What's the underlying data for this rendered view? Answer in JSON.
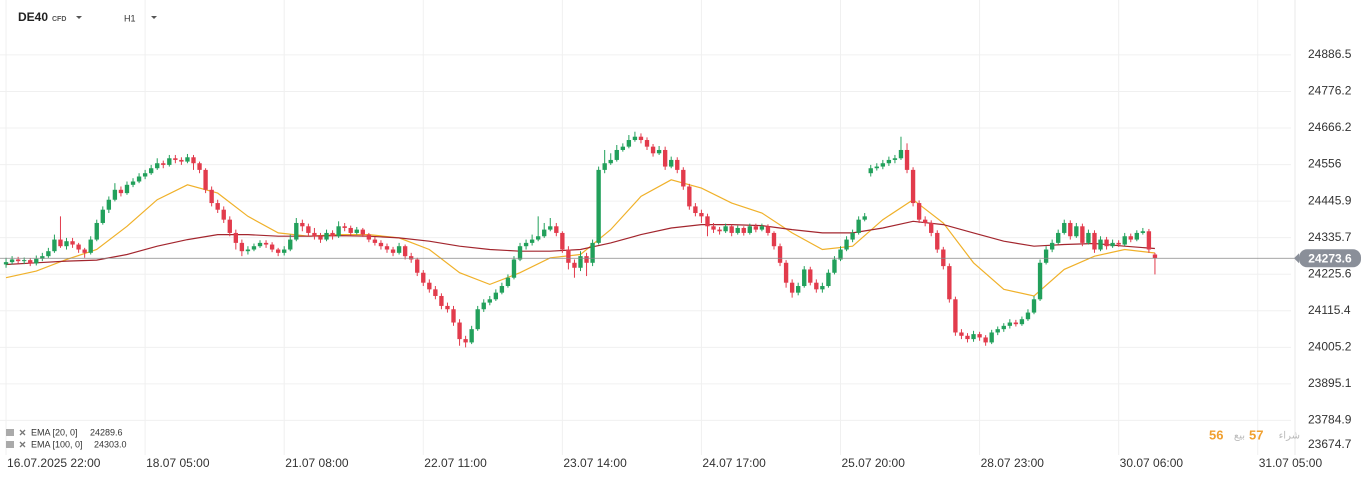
{
  "header": {
    "symbol": "DE40",
    "instrument": "CFD",
    "timeframe": "H1"
  },
  "quote": {
    "sell": "56",
    "sell_label": "بيع",
    "buy": "57",
    "buy_label": "شراء"
  },
  "chart_data": {
    "type": "candlestick",
    "ylim": [
      23674.7,
      25052
    ],
    "yticks": [
      24886.5,
      24776.2,
      24666.2,
      24556,
      {
        "value": 24445.9,
        "label": "24445.9"
      },
      24335.7,
      24225.6,
      24115.4,
      24005.2,
      23895.1,
      23784.9,
      23674.7
    ],
    "xlim": [
      -1,
      212.5
    ],
    "xticks": [
      {
        "value": 0,
        "label": "16.07.2025  22:00"
      },
      {
        "value": 23,
        "label": "18.07  05:00"
      },
      {
        "value": 46,
        "label": "21.07  08:00"
      },
      {
        "value": 69,
        "label": "22.07  11:00"
      },
      {
        "value": 92,
        "label": "23.07  14:00"
      },
      {
        "value": 115,
        "label": "24.07  17:00"
      },
      {
        "value": 138,
        "label": "25.07  20:00"
      },
      {
        "value": 161,
        "label": "28.07  23:00"
      },
      {
        "value": 184,
        "label": "30.07  06:00"
      },
      {
        "value": 207,
        "label": "31.07  05:00"
      }
    ],
    "grid": true,
    "up_color": "#22a05b",
    "down_color": "#e23b4c",
    "last_price": 24273.6,
    "open": [
      24255,
      24262,
      24270,
      24265,
      24268,
      24258,
      24272,
      24280,
      24295,
      24330,
      24310,
      24325,
      24315,
      24300,
      24290,
      24330,
      24380,
      24420,
      24450,
      24480,
      24470,
      24495,
      24505,
      24520,
      24530,
      24545,
      24560,
      24555,
      24575,
      24570,
      24565,
      24578,
      24560,
      24540,
      24480,
      24440,
      24420,
      24390,
      24350,
      24320,
      24295,
      24300,
      24310,
      24320,
      24315,
      24300,
      24290,
      24300,
      24330,
      24380,
      24370,
      24350,
      24340,
      24330,
      24350,
      24340,
      24370,
      24365,
      24350,
      24360,
      24345,
      24330,
      24320,
      24310,
      24300,
      24290,
      24310,
      24280,
      24270,
      24230,
      24200,
      24180,
      24160,
      24130,
      24120,
      24080,
      24030,
      24020,
      24060,
      24120,
      24140,
      24150,
      24170,
      24190,
      24215,
      24270,
      24310,
      24320,
      24330,
      24340,
      24360,
      24370,
      24350,
      24300,
      24260,
      24245,
      24280,
      24260,
      24320,
      24540,
      24560,
      24570,
      24600,
      24610,
      24630,
      24640,
      24630,
      24610,
      24590,
      24600,
      24550,
      24570,
      24540,
      24490,
      24430,
      24410,
      24400,
      24370,
      24360,
      24355,
      24370,
      24350,
      24365,
      24350,
      24370,
      24360,
      24370,
      24350,
      24310,
      24260,
      24200,
      24170,
      24190,
      24240,
      24200,
      24180,
      24190,
      24230,
      24270,
      24300,
      24330,
      24350,
      24390,
      24530,
      24545,
      24550,
      24560,
      24570,
      24575,
      24600,
      24540,
      24440,
      24390,
      24380,
      24350,
      24300,
      24250,
      24150,
      24050,
      24040,
      24030,
      24045,
      24035,
      24020,
      24050,
      24060,
      24070,
      24080,
      24075,
      24090,
      24110,
      24150,
      24260,
      24300,
      24320,
      24350,
      24380,
      24340,
      24370,
      24320,
      24350,
      24300,
      24330,
      24310,
      24320,
      24315,
      24340,
      24330,
      24350,
      24355,
      24285
    ],
    "high": [
      24275,
      24280,
      24278,
      24276,
      24274,
      24282,
      24290,
      24305,
      24345,
      24400,
      24335,
      24335,
      24320,
      24305,
      24340,
      24390,
      24430,
      24460,
      24500,
      24490,
      24505,
      24515,
      24530,
      24540,
      24555,
      24575,
      24568,
      24585,
      24585,
      24578,
      24588,
      24585,
      24565,
      24545,
      24490,
      24450,
      24430,
      24400,
      24360,
      24330,
      24310,
      24318,
      24328,
      24328,
      24322,
      24305,
      24310,
      24345,
      24395,
      24390,
      24378,
      24365,
      24350,
      24360,
      24358,
      24385,
      24380,
      24372,
      24368,
      24365,
      24350,
      24338,
      24328,
      24318,
      24308,
      24320,
      24315,
      24290,
      24275,
      24238,
      24210,
      24190,
      24168,
      24140,
      24130,
      24090,
      24040,
      24070,
      24130,
      24150,
      24160,
      24180,
      24200,
      24225,
      24280,
      24320,
      24330,
      24345,
      24400,
      24380,
      24395,
      24380,
      24355,
      24310,
      24270,
      24295,
      24290,
      24330,
      24550,
      24600,
      24590,
      24615,
      24620,
      24645,
      24655,
      24650,
      24638,
      24618,
      24612,
      24610,
      24580,
      24578,
      24548,
      24498,
      24440,
      24420,
      24408,
      24380,
      24368,
      24378,
      24375,
      24372,
      24370,
      24378,
      24378,
      24378,
      24376,
      24355,
      24318,
      24268,
      24210,
      24200,
      24250,
      24248,
      24210,
      24200,
      24240,
      24280,
      24310,
      24340,
      24360,
      24400,
      24410,
      24555,
      24560,
      24570,
      24580,
      24585,
      24640,
      24620,
      24548,
      24448,
      24400,
      24388,
      24358,
      24308,
      24258,
      24158,
      24060,
      24048,
      24055,
      24052,
      24042,
      24058,
      24068,
      24078,
      24090,
      24088,
      24098,
      24120,
      24160,
      24270,
      24310,
      24330,
      24360,
      24390,
      24388,
      24380,
      24378,
      24360,
      24358,
      24340,
      24338,
      24330,
      24328,
      24350,
      24348,
      24358,
      24365,
      24362,
      24290
    ],
    "low": [
      24245,
      24255,
      24258,
      24256,
      24250,
      24252,
      24265,
      24275,
      24290,
      24305,
      24300,
      24305,
      24290,
      24275,
      24285,
      24325,
      24375,
      24410,
      24445,
      24460,
      24465,
      24488,
      24500,
      24512,
      24525,
      24540,
      24545,
      24550,
      24560,
      24555,
      24560,
      24540,
      24530,
      24470,
      24430,
      24410,
      24380,
      24340,
      24300,
      24280,
      24285,
      24295,
      24305,
      24305,
      24292,
      24280,
      24282,
      24295,
      24325,
      24355,
      24340,
      24330,
      24320,
      24325,
      24330,
      24335,
      24355,
      24342,
      24345,
      24338,
      24322,
      24312,
      24300,
      24290,
      24280,
      24285,
      24270,
      24260,
      24220,
      24190,
      24170,
      24150,
      24120,
      24110,
      24070,
      24010,
      24005,
      24015,
      24055,
      24112,
      24132,
      24145,
      24165,
      24185,
      24210,
      24265,
      24300,
      24312,
      24325,
      24335,
      24355,
      24340,
      24290,
      24240,
      24215,
      24235,
      24220,
      24250,
      24315,
      24530,
      24555,
      24565,
      24595,
      24605,
      24625,
      24620,
      24600,
      24580,
      24585,
      24540,
      24545,
      24530,
      24480,
      24420,
      24400,
      24380,
      24340,
      24350,
      24345,
      24350,
      24340,
      24345,
      24342,
      24345,
      24352,
      24355,
      24342,
      24300,
      24250,
      24185,
      24155,
      24162,
      24185,
      24192,
      24170,
      24170,
      24185,
      24225,
      24265,
      24295,
      24322,
      24345,
      24385,
      24520,
      24538,
      24542,
      24552,
      24560,
      24570,
      24530,
      24430,
      24380,
      24370,
      24340,
      24290,
      24240,
      24140,
      24040,
      24030,
      24020,
      24022,
      24025,
      24010,
      24015,
      24042,
      24052,
      24062,
      24068,
      24070,
      24085,
      24105,
      24145,
      24255,
      24292,
      24315,
      24345,
      24330,
      24335,
      24310,
      24315,
      24290,
      24295,
      24300,
      24305,
      24308,
      24310,
      24322,
      24325,
      24345,
      24290,
      24225
    ],
    "close": [
      24262,
      24270,
      24265,
      24268,
      24258,
      24272,
      24280,
      24295,
      24330,
      24310,
      24325,
      24315,
      24300,
      24290,
      24330,
      24380,
      24420,
      24450,
      24480,
      24470,
      24495,
      24505,
      24520,
      24530,
      24545,
      24560,
      24555,
      24575,
      24570,
      24565,
      24578,
      24560,
      24540,
      24480,
      24440,
      24420,
      24390,
      24350,
      24320,
      24295,
      24300,
      24310,
      24320,
      24315,
      24300,
      24290,
      24300,
      24330,
      24380,
      24370,
      24350,
      24340,
      24330,
      24350,
      24340,
      24370,
      24365,
      24350,
      24360,
      24345,
      24330,
      24320,
      24310,
      24300,
      24290,
      24310,
      24280,
      24270,
      24230,
      24200,
      24180,
      24160,
      24130,
      24120,
      24080,
      24030,
      24020,
      24060,
      24120,
      24140,
      24150,
      24170,
      24190,
      24215,
      24270,
      24310,
      24320,
      24330,
      24340,
      24360,
      24370,
      24350,
      24300,
      24260,
      24245,
      24280,
      24260,
      24320,
      24540,
      24560,
      24570,
      24600,
      24610,
      24630,
      24640,
      24630,
      24610,
      24590,
      24600,
      24550,
      24570,
      24540,
      24490,
      24430,
      24410,
      24400,
      24370,
      24360,
      24355,
      24370,
      24350,
      24365,
      24350,
      24370,
      24360,
      24370,
      24350,
      24310,
      24260,
      24200,
      24170,
      24190,
      24240,
      24200,
      24180,
      24190,
      24230,
      24270,
      24300,
      24330,
      24350,
      24390,
      24400,
      24545,
      24550,
      24560,
      24570,
      24575,
      24600,
      24540,
      24440,
      24390,
      24380,
      24350,
      24300,
      24250,
      24150,
      24050,
      24040,
      24030,
      24045,
      24035,
      24020,
      24050,
      24060,
      24070,
      24080,
      24075,
      24090,
      24110,
      24150,
      24260,
      24300,
      24320,
      24350,
      24380,
      24340,
      24370,
      24320,
      24350,
      24300,
      24330,
      24310,
      24320,
      24315,
      24340,
      24330,
      24350,
      24355,
      24300,
      24273.6
    ],
    "series": [
      {
        "name": "EMA [20, 0]",
        "legend_value": "24289.6",
        "color": "#f0b12a",
        "x": [
          0,
          5,
          10,
          15,
          20,
          25,
          30,
          35,
          40,
          45,
          50,
          55,
          60,
          65,
          70,
          75,
          80,
          85,
          90,
          95,
          100,
          105,
          110,
          115,
          120,
          125,
          130,
          135,
          140,
          145,
          150,
          155,
          160,
          165,
          170,
          175,
          180,
          185,
          190
        ],
        "values": [
          24215,
          24235,
          24270,
          24300,
          24370,
          24450,
          24495,
          24470,
          24400,
          24350,
          24340,
          24345,
          24345,
          24335,
          24300,
          24230,
          24195,
          24230,
          24275,
          24285,
          24360,
          24460,
          24510,
          24485,
          24440,
          24410,
          24350,
          24300,
          24310,
          24390,
          24450,
          24380,
          24260,
          24180,
          24160,
          24240,
          24280,
          24300,
          24289.6
        ]
      },
      {
        "name": "EMA [100, 0]",
        "legend_value": "24303.0",
        "color": "#a3262e",
        "x": [
          0,
          5,
          10,
          15,
          20,
          25,
          30,
          35,
          40,
          45,
          50,
          55,
          60,
          65,
          70,
          75,
          80,
          85,
          90,
          95,
          100,
          105,
          110,
          115,
          120,
          125,
          130,
          135,
          140,
          145,
          150,
          155,
          160,
          165,
          170,
          175,
          180,
          185,
          190
        ],
        "values": [
          24255,
          24260,
          24265,
          24268,
          24285,
          24310,
          24330,
          24345,
          24345,
          24340,
          24340,
          24342,
          24340,
          24335,
          24325,
          24310,
          24300,
          24295,
          24295,
          24300,
          24320,
          24345,
          24365,
          24375,
          24375,
          24372,
          24360,
          24350,
          24350,
          24365,
          24385,
          24375,
          24350,
          24325,
          24310,
          24315,
          24318,
          24310,
          24303
        ]
      }
    ]
  }
}
